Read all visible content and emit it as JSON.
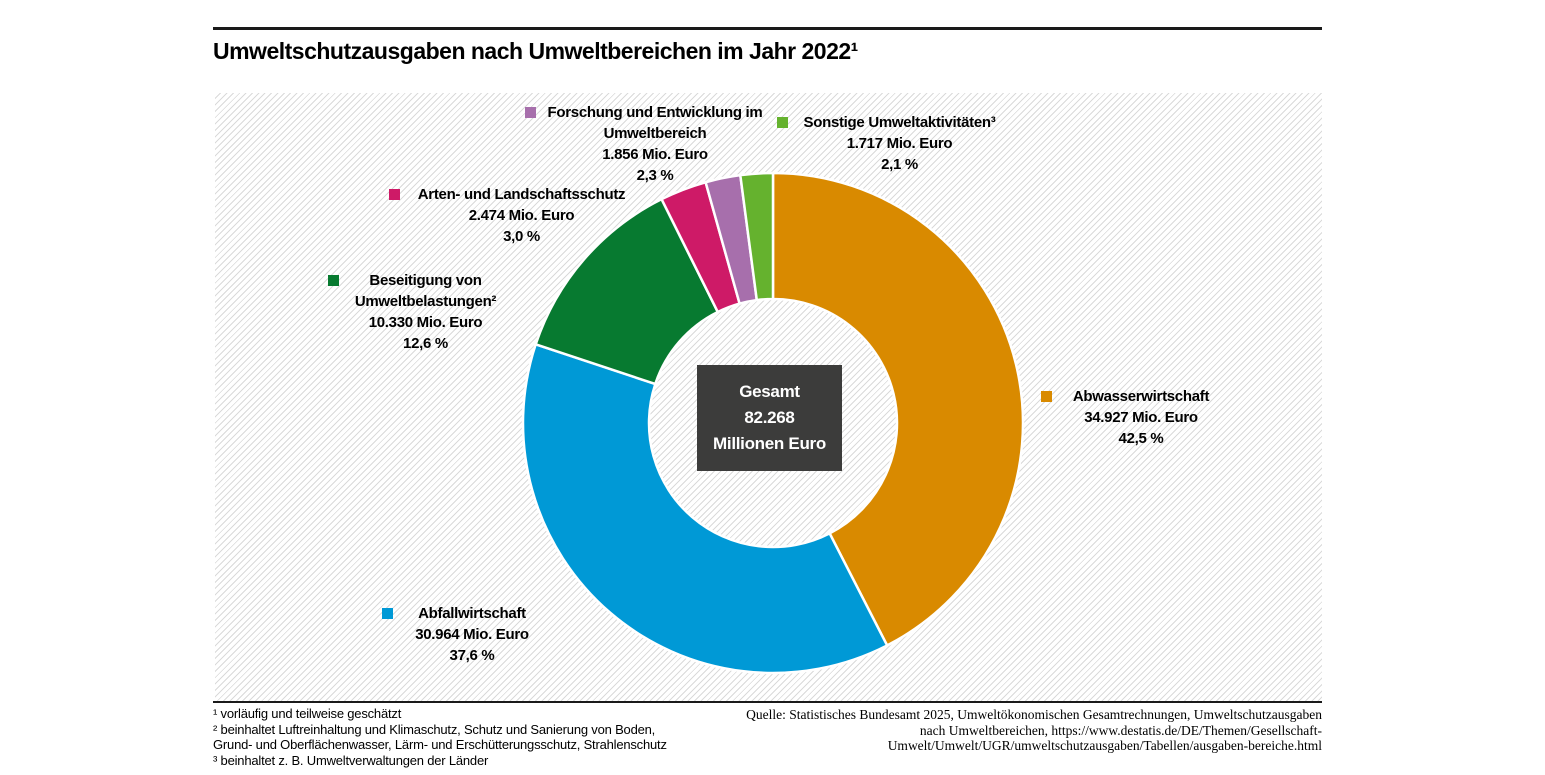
{
  "header": {
    "title": "Umweltschutzausgaben nach Umweltbereichen im Jahr 2022¹"
  },
  "chart_data": {
    "type": "pie",
    "subtype": "donut",
    "title": "Umweltschutzausgaben nach Umweltbereichen im Jahr 2022¹",
    "total_value": 82268,
    "unit": "Mio. Euro",
    "start_angle_deg": 0,
    "direction": "clockwise",
    "center_box_color": "#3c3c3b",
    "center_label": {
      "line1": "Gesamt",
      "line2": "82.268",
      "line3": "Millionen Euro"
    },
    "segments": [
      {
        "name": "Abwasserwirtschaft",
        "value": 34927,
        "percent": 42.5,
        "value_label": "34.927 Mio. Euro",
        "percent_label": "42,5 %",
        "color": "#d98a00"
      },
      {
        "name": "Abfallwirtschaft",
        "value": 30964,
        "percent": 37.6,
        "value_label": "30.964 Mio. Euro",
        "percent_label": "37,6 %",
        "color": "#0099d6"
      },
      {
        "name": "Beseitigung von Umweltbelastungen²",
        "value": 10330,
        "percent": 12.6,
        "value_label": "10.330 Mio. Euro",
        "percent_label": "12,6 %",
        "color": "#077a30"
      },
      {
        "name": "Arten- und Landschaftsschutz",
        "value": 2474,
        "percent": 3.0,
        "value_label": "2.474 Mio. Euro",
        "percent_label": "3,0 %",
        "color": "#ce1a67"
      },
      {
        "name": "Forschung und Entwicklung im Umweltbereich",
        "value": 1856,
        "percent": 2.3,
        "value_label": "1.856 Mio. Euro",
        "percent_label": "2,3 %",
        "color": "#a76fac"
      },
      {
        "name": "Sonstige Umweltaktivitäten³",
        "value": 1717,
        "percent": 2.1,
        "value_label": "1.717 Mio. Euro",
        "percent_label": "2,1 %",
        "color": "#65b22e"
      }
    ]
  },
  "footnotes": {
    "line1": "¹ vorläufig und teilweise geschätzt",
    "line2": "² beinhaltet Luftreinhaltung und Klimaschutz, Schutz und Sanierung von Boden,",
    "line3": "Grund- und Oberflächenwasser, Lärm- und Erschütterungsschutz, Strahlenschutz",
    "line4": "³ beinhaltet z. B. Umweltverwaltungen der Länder"
  },
  "source": {
    "line1": "Quelle: Statistisches Bundesamt 2025, Umweltökonomischen Gesamtrechnungen, Umweltschutzausgaben",
    "line2": "nach Umweltbereichen, https://www.destatis.de/DE/Themen/Gesellschaft-",
    "line3": "Umwelt/Umwelt/UGR/umweltschutzausgaben/Tabellen/ausgaben-bereiche.html"
  }
}
